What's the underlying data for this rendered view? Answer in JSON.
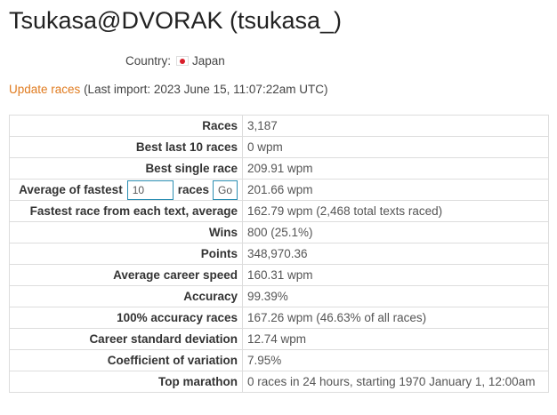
{
  "profile": {
    "title": "Tsukasa@DVORAK (tsukasa_)",
    "country_label": "Country:",
    "country_name": "Japan",
    "flag_colors": {
      "field": "#ffffff",
      "disc": "#d81e2a"
    }
  },
  "update": {
    "link_label": "Update races",
    "last_import": "(Last import: 2023 June 15, 11:07:22am UTC)"
  },
  "stats": {
    "rows": [
      {
        "label": "Races",
        "value": "3,187"
      },
      {
        "label": "Best last 10 races",
        "value": "0 wpm"
      },
      {
        "label": "Best single race",
        "value": "209.91 wpm"
      },
      {
        "label": "Average of fastest",
        "value": "201.66 wpm"
      },
      {
        "label": "Fastest race from each text, average",
        "value": "162.79 wpm (2,468 total texts raced)"
      },
      {
        "label": "Wins",
        "value": "800 (25.1%)"
      },
      {
        "label": "Points",
        "value": "348,970.36"
      },
      {
        "label": "Average career speed",
        "value": "160.31 wpm"
      },
      {
        "label": "Accuracy",
        "value": "99.39%"
      },
      {
        "label": "100% accuracy races",
        "value": "167.26 wpm (46.63% of all races)"
      },
      {
        "label": "Career standard deviation",
        "value": "12.74 wpm"
      },
      {
        "label": "Coefficient of variation",
        "value": "7.95%"
      },
      {
        "label": "Top marathon",
        "value": "0 races in 24 hours, starting 1970 January 1, 12:00am"
      }
    ],
    "fastest_form": {
      "input_value": "10",
      "suffix": "races",
      "button_label": "Go"
    }
  }
}
